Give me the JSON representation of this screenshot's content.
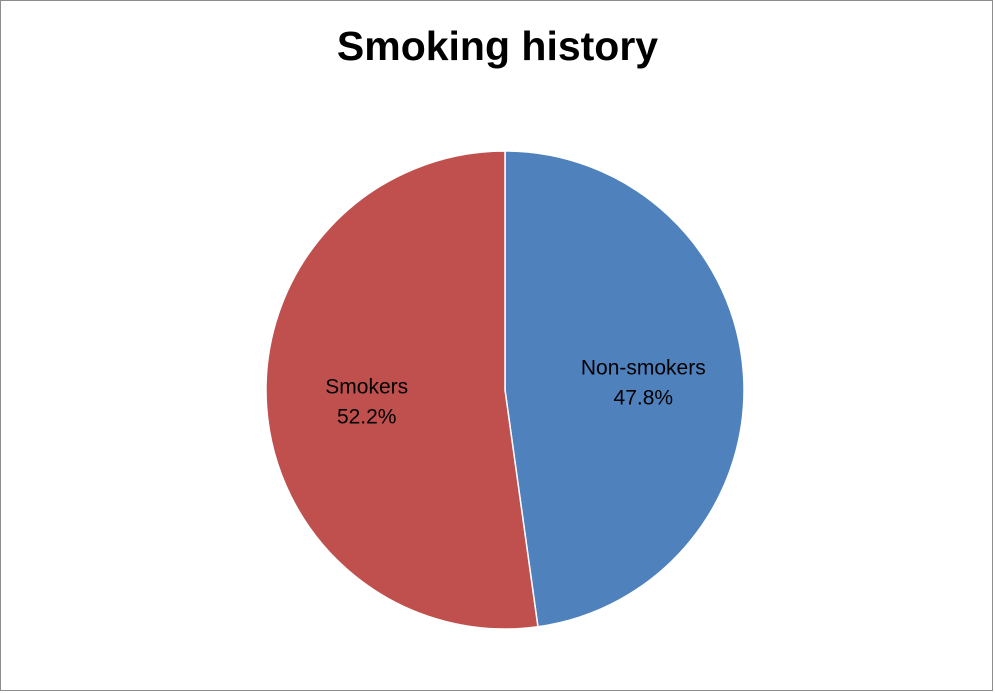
{
  "chart_data": {
    "type": "pie",
    "title": "Smoking history",
    "slices": [
      {
        "label": "Non-smokers",
        "value": 47.8,
        "value_label": "47.8%",
        "color": "#4f81bd"
      },
      {
        "label": "Smokers",
        "value": 52.2,
        "value_label": "52.2%",
        "color": "#c0504d"
      }
    ],
    "start_angle": "12 o'clock",
    "direction": "clockwise",
    "legend": "none",
    "data_labels": "inside slices"
  }
}
